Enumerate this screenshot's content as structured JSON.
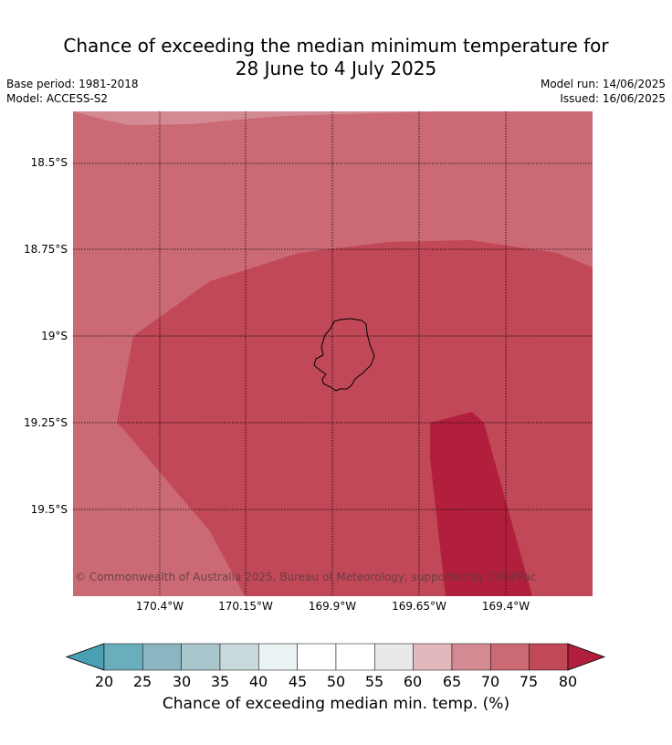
{
  "title": {
    "line1": "Chance of exceeding the median minimum temperature for",
    "line2": "28 June to 4 July 2025"
  },
  "meta": {
    "base_period": "Base period: 1981-2018",
    "model": "Model: ACCESS-S2",
    "model_run": "Model run: 14/06/2025",
    "issued": "Issued: 16/06/2025"
  },
  "map": {
    "lat_labels": [
      "18.5°S",
      "18.75°S",
      "19°S",
      "19.25°S",
      "19.5°S"
    ],
    "lon_labels": [
      "170.4°W",
      "170.15°W",
      "169.9°W",
      "169.65°W",
      "169.4°W"
    ],
    "copyright": "© Commonwealth of Australia 2025, Bureau of Meteorology, supported by COSPPac",
    "colors": {
      "band_65_70": "#d48a92",
      "band_70_75": "#cb6a74",
      "band_75_80": "#c14856",
      "band_80_plus": "#b21f3c",
      "coast": "#000000"
    }
  },
  "colorbar": {
    "ticks": [
      "20",
      "25",
      "30",
      "35",
      "40",
      "45",
      "50",
      "55",
      "60",
      "65",
      "70",
      "75",
      "80"
    ],
    "colors": [
      "#4aa0b2",
      "#6aadbd",
      "#8bb5c1",
      "#a8c6cb",
      "#c9d9dc",
      "#ebf2f4",
      "#ffffff",
      "#ffffff",
      "#e9e9e9",
      "#e1b8bc",
      "#d48a92",
      "#cb6a74",
      "#c14856",
      "#b21f3c"
    ],
    "label": "Chance of exceeding median min. temp. (%)"
  }
}
